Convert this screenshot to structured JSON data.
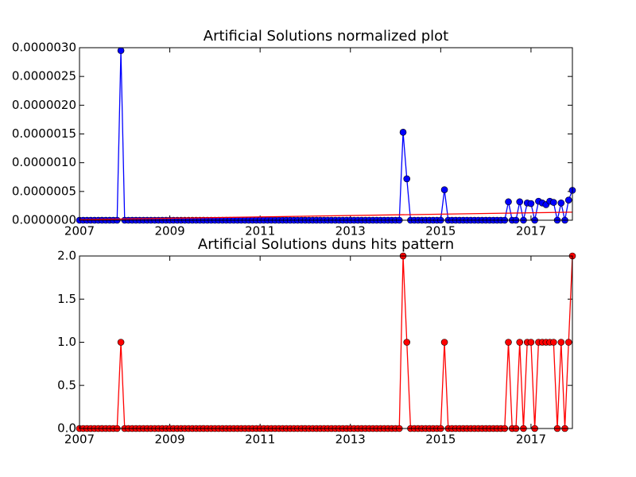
{
  "chart_data": [
    {
      "type": "line",
      "title": "Artificial Solutions normalized plot",
      "x": [
        2007,
        2007.083,
        2007.167,
        2007.25,
        2007.333,
        2007.417,
        2007.5,
        2007.583,
        2007.667,
        2007.75,
        2007.833,
        2007.917,
        2008,
        2008.083,
        2008.167,
        2008.25,
        2008.333,
        2008.417,
        2008.5,
        2008.583,
        2008.667,
        2008.75,
        2008.833,
        2008.917,
        2009,
        2009.083,
        2009.167,
        2009.25,
        2009.333,
        2009.417,
        2009.5,
        2009.583,
        2009.667,
        2009.75,
        2009.833,
        2009.917,
        2010,
        2010.083,
        2010.167,
        2010.25,
        2010.333,
        2010.417,
        2010.5,
        2010.583,
        2010.667,
        2010.75,
        2010.833,
        2010.917,
        2011,
        2011.083,
        2011.167,
        2011.25,
        2011.333,
        2011.417,
        2011.5,
        2011.583,
        2011.667,
        2011.75,
        2011.833,
        2011.917,
        2012,
        2012.083,
        2012.167,
        2012.25,
        2012.333,
        2012.417,
        2012.5,
        2012.583,
        2012.667,
        2012.75,
        2012.833,
        2012.917,
        2013,
        2013.083,
        2013.167,
        2013.25,
        2013.333,
        2013.417,
        2013.5,
        2013.583,
        2013.667,
        2013.75,
        2013.833,
        2013.917,
        2014,
        2014.083,
        2014.167,
        2014.25,
        2014.333,
        2014.417,
        2014.5,
        2014.583,
        2014.667,
        2014.75,
        2014.833,
        2014.917,
        2015,
        2015.083,
        2015.167,
        2015.25,
        2015.333,
        2015.417,
        2015.5,
        2015.583,
        2015.667,
        2015.75,
        2015.833,
        2015.917,
        2016,
        2016.083,
        2016.167,
        2016.25,
        2016.333,
        2016.417,
        2016.5,
        2016.583,
        2016.667,
        2016.75,
        2016.833,
        2016.917,
        2017,
        2017.083,
        2017.167,
        2017.25,
        2017.333,
        2017.417,
        2017.5,
        2017.583,
        2017.667,
        2017.75,
        2017.833,
        2017.917
      ],
      "series": [
        {
          "color": "#0000ff",
          "marker": true,
          "values": [
            0,
            0,
            0,
            0,
            0,
            0,
            0,
            0,
            0,
            0,
            0,
            2.95e-06,
            0,
            0,
            0,
            0,
            0,
            0,
            0,
            0,
            0,
            0,
            0,
            0,
            0,
            0,
            0,
            0,
            0,
            0,
            0,
            0,
            0,
            0,
            0,
            0,
            0,
            0,
            0,
            0,
            0,
            0,
            0,
            0,
            0,
            0,
            0,
            0,
            0,
            0,
            0,
            0,
            0,
            0,
            0,
            0,
            0,
            0,
            0,
            0,
            0,
            0,
            0,
            0,
            0,
            0,
            0,
            0,
            0,
            0,
            0,
            0,
            0,
            0,
            0,
            0,
            0,
            0,
            0,
            0,
            0,
            0,
            0,
            0,
            0,
            0,
            1.53e-06,
            7.2e-07,
            0,
            0,
            0,
            0,
            0,
            0,
            0,
            0,
            0,
            5.3e-07,
            0,
            0,
            0,
            0,
            0,
            0,
            0,
            0,
            0,
            0,
            0,
            0,
            0,
            0,
            0,
            0,
            3.2e-07,
            0,
            0,
            3.2e-07,
            0,
            3e-07,
            2.9e-07,
            0,
            3.3e-07,
            3e-07,
            2.7e-07,
            3.3e-07,
            3.1e-07,
            0,
            3e-07,
            0,
            3.5e-07,
            5.2e-07
          ]
        },
        {
          "color": "#ff0000",
          "marker": false,
          "x": [
            2007,
            2017.917
          ],
          "values": [
            1e-08,
            1.4e-07
          ]
        }
      ],
      "xlim": [
        2007,
        2017.917
      ],
      "xticks": [
        2007,
        2009,
        2011,
        2013,
        2015,
        2017
      ],
      "ylim": [
        0,
        3e-06
      ],
      "yticks": [
        {
          "value": 0,
          "label": "0.0000000"
        },
        {
          "value": 5e-07,
          "label": "0.0000005"
        },
        {
          "value": 1e-06,
          "label": "0.0000010"
        },
        {
          "value": 1.5e-06,
          "label": "0.0000015"
        },
        {
          "value": 2e-06,
          "label": "0.0000020"
        },
        {
          "value": 2.5e-06,
          "label": "0.0000025"
        },
        {
          "value": 3e-06,
          "label": "0.0000030"
        }
      ]
    },
    {
      "type": "line",
      "title": "Artificial Solutions duns hits pattern",
      "x": [
        2007,
        2007.083,
        2007.167,
        2007.25,
        2007.333,
        2007.417,
        2007.5,
        2007.583,
        2007.667,
        2007.75,
        2007.833,
        2007.917,
        2008,
        2008.083,
        2008.167,
        2008.25,
        2008.333,
        2008.417,
        2008.5,
        2008.583,
        2008.667,
        2008.75,
        2008.833,
        2008.917,
        2009,
        2009.083,
        2009.167,
        2009.25,
        2009.333,
        2009.417,
        2009.5,
        2009.583,
        2009.667,
        2009.75,
        2009.833,
        2009.917,
        2010,
        2010.083,
        2010.167,
        2010.25,
        2010.333,
        2010.417,
        2010.5,
        2010.583,
        2010.667,
        2010.75,
        2010.833,
        2010.917,
        2011,
        2011.083,
        2011.167,
        2011.25,
        2011.333,
        2011.417,
        2011.5,
        2011.583,
        2011.667,
        2011.75,
        2011.833,
        2011.917,
        2012,
        2012.083,
        2012.167,
        2012.25,
        2012.333,
        2012.417,
        2012.5,
        2012.583,
        2012.667,
        2012.75,
        2012.833,
        2012.917,
        2013,
        2013.083,
        2013.167,
        2013.25,
        2013.333,
        2013.417,
        2013.5,
        2013.583,
        2013.667,
        2013.75,
        2013.833,
        2013.917,
        2014,
        2014.083,
        2014.167,
        2014.25,
        2014.333,
        2014.417,
        2014.5,
        2014.583,
        2014.667,
        2014.75,
        2014.833,
        2014.917,
        2015,
        2015.083,
        2015.167,
        2015.25,
        2015.333,
        2015.417,
        2015.5,
        2015.583,
        2015.667,
        2015.75,
        2015.833,
        2015.917,
        2016,
        2016.083,
        2016.167,
        2016.25,
        2016.333,
        2016.417,
        2016.5,
        2016.583,
        2016.667,
        2016.75,
        2016.833,
        2016.917,
        2017,
        2017.083,
        2017.167,
        2017.25,
        2017.333,
        2017.417,
        2017.5,
        2017.583,
        2017.667,
        2017.75,
        2017.833,
        2017.917
      ],
      "series": [
        {
          "color": "#ff0000",
          "marker": true,
          "values": [
            0,
            0,
            0,
            0,
            0,
            0,
            0,
            0,
            0,
            0,
            0,
            1,
            0,
            0,
            0,
            0,
            0,
            0,
            0,
            0,
            0,
            0,
            0,
            0,
            0,
            0,
            0,
            0,
            0,
            0,
            0,
            0,
            0,
            0,
            0,
            0,
            0,
            0,
            0,
            0,
            0,
            0,
            0,
            0,
            0,
            0,
            0,
            0,
            0,
            0,
            0,
            0,
            0,
            0,
            0,
            0,
            0,
            0,
            0,
            0,
            0,
            0,
            0,
            0,
            0,
            0,
            0,
            0,
            0,
            0,
            0,
            0,
            0,
            0,
            0,
            0,
            0,
            0,
            0,
            0,
            0,
            0,
            0,
            0,
            0,
            0,
            2,
            1,
            0,
            0,
            0,
            0,
            0,
            0,
            0,
            0,
            0,
            1,
            0,
            0,
            0,
            0,
            0,
            0,
            0,
            0,
            0,
            0,
            0,
            0,
            0,
            0,
            0,
            0,
            1,
            0,
            0,
            1,
            0,
            1,
            1,
            0,
            1,
            1,
            1,
            1,
            1,
            0,
            1,
            0,
            1,
            2
          ]
        }
      ],
      "xlim": [
        2007,
        2017.917
      ],
      "xticks": [
        2007,
        2009,
        2011,
        2013,
        2015,
        2017
      ],
      "ylim": [
        0,
        2
      ],
      "yticks": [
        {
          "value": 0,
          "label": "0.0"
        },
        0.5,
        {
          "value": 1,
          "label": "1.0"
        },
        1.5,
        {
          "value": 2,
          "label": "2.0"
        }
      ]
    }
  ]
}
